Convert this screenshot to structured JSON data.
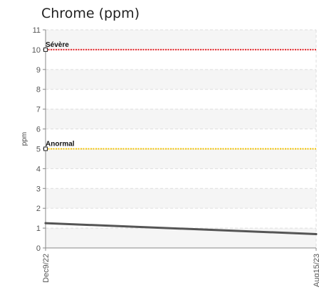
{
  "chart_data": {
    "type": "line",
    "title": "Chrome (ppm)",
    "ylabel": "ppm",
    "xlabel": "",
    "ylim": [
      0,
      11
    ],
    "y_ticks": [
      0,
      1,
      2,
      3,
      4,
      5,
      6,
      7,
      8,
      9,
      10,
      11
    ],
    "x": [
      "Dec9/22",
      "Aug15/23"
    ],
    "series": [
      {
        "values": [
          1.25,
          0.7
        ],
        "color": "#555555"
      }
    ],
    "thresholds": [
      {
        "label": "Sévère",
        "value": 10,
        "color": "#e8262a"
      },
      {
        "label": "Anormal",
        "value": 5,
        "color": "#f5c400"
      }
    ],
    "grid": true,
    "legend": "none"
  }
}
